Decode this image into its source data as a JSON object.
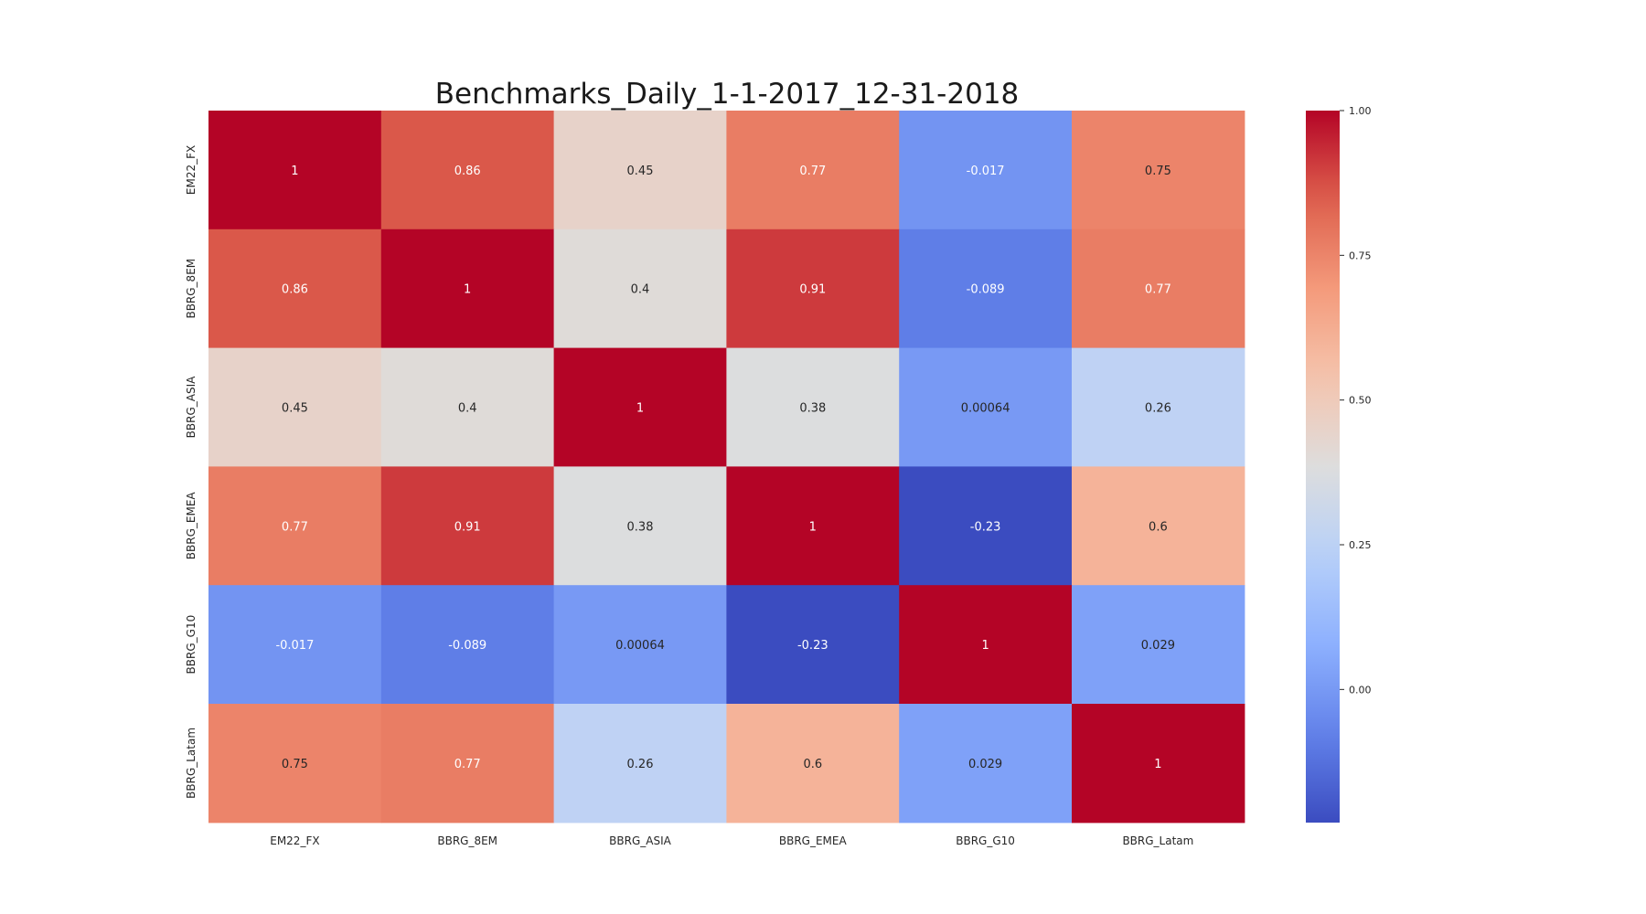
{
  "chart_data": {
    "type": "heatmap",
    "title": "Benchmarks_Daily_1-1-2017_12-31-2018",
    "x_categories": [
      "EM22_FX",
      "BBRG_8EM",
      "BBRG_ASIA",
      "BBRG_EMEA",
      "BBRG_G10",
      "BBRG_Latam"
    ],
    "y_categories": [
      "EM22_FX",
      "BBRG_8EM",
      "BBRG_ASIA",
      "BBRG_EMEA",
      "BBRG_G10",
      "BBRG_Latam"
    ],
    "values": [
      [
        1,
        0.86,
        0.45,
        0.77,
        -0.017,
        0.75
      ],
      [
        0.86,
        1,
        0.4,
        0.91,
        -0.089,
        0.77
      ],
      [
        0.45,
        0.4,
        1,
        0.38,
        0.00064,
        0.26
      ],
      [
        0.77,
        0.91,
        0.38,
        1,
        -0.23,
        0.6
      ],
      [
        -0.017,
        -0.089,
        0.00064,
        -0.23,
        1,
        0.029
      ],
      [
        0.75,
        0.77,
        0.26,
        0.6,
        0.029,
        1
      ]
    ],
    "annotations": [
      [
        "1",
        "0.86",
        "0.45",
        "0.77",
        "-0.017",
        "0.75"
      ],
      [
        "0.86",
        "1",
        "0.4",
        "0.91",
        "-0.089",
        "0.77"
      ],
      [
        "0.45",
        "0.4",
        "1",
        "0.38",
        "0.00064",
        "0.26"
      ],
      [
        "0.77",
        "0.91",
        "0.38",
        "1",
        "-0.23",
        "0.6"
      ],
      [
        "-0.017",
        "-0.089",
        "0.00064",
        "-0.23",
        "1",
        "0.029"
      ],
      [
        "0.75",
        "0.77",
        "0.26",
        "0.6",
        "0.029",
        "1"
      ]
    ],
    "colormap": "coolwarm",
    "color_range": [
      -0.23,
      1
    ],
    "colorbar_ticks": [
      {
        "value": 0,
        "label": "0.00"
      },
      {
        "value": 0.25,
        "label": "0.25"
      },
      {
        "value": 0.5,
        "label": "0.50"
      },
      {
        "value": 0.75,
        "label": "0.75"
      },
      {
        "value": 1,
        "label": "1.00"
      }
    ],
    "colorbar_placement": "right",
    "grid": false
  }
}
